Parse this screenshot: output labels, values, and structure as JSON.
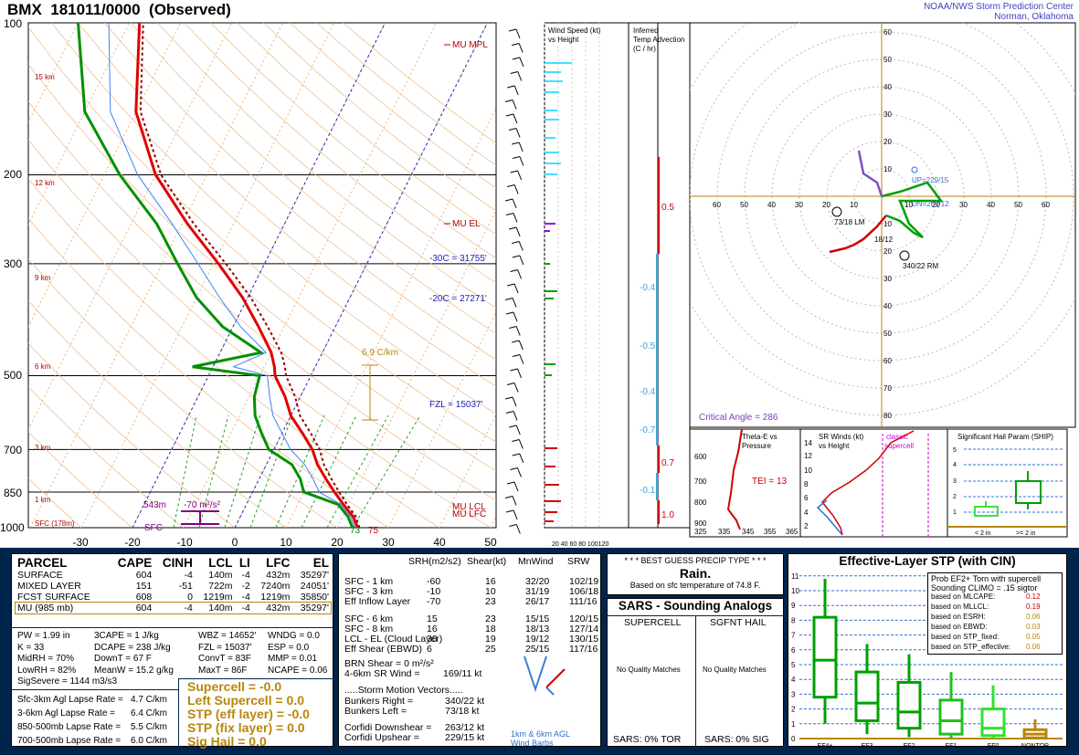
{
  "header": {
    "station": "BMX",
    "datetime": "181011/0000",
    "status": "(Observed)",
    "credit_line1": "NOAA/NWS Storm Prediction Center",
    "credit_line2": "Norman, Oklahoma"
  },
  "skewt": {
    "pressure_labels": [
      "100",
      "200",
      "300",
      "500",
      "700",
      "850",
      "1000"
    ],
    "height_labels": [
      "15 km",
      "12 km",
      "9 km",
      "6 km",
      "3 km",
      "1 km",
      "SFC (178m)"
    ],
    "temp_labels": [
      "-30",
      "-20",
      "-10",
      "0",
      "10",
      "20",
      "30",
      "40",
      "50"
    ],
    "annotations": {
      "mu_mpl": "MU MPL",
      "mu_el": "MU EL",
      "m30c": "-30C = 31755'",
      "m20c": "-20C = 27271'",
      "fzl": "FZL = 15037'",
      "mu_lcl": "MU LCL",
      "mu_lfc": "MU LFC",
      "lapse": "6.9 C/km",
      "sfc_t": "75",
      "sfc_td": "73",
      "m543": "543m",
      "m70": "-70 m²/s²",
      "sfc": "SFC"
    },
    "chart_data": {
      "type": "line",
      "title": "",
      "series": [
        {
          "name": "",
          "p": [
            1000,
            950,
            925,
            900,
            850,
            800,
            750,
            700,
            650,
            600,
            550,
            500,
            480,
            450,
            400,
            350,
            300,
            250,
            200,
            150,
            100
          ],
          "t": [
            24,
            22,
            20.5,
            19,
            16,
            13,
            10,
            7.5,
            4,
            0,
            -3,
            -7,
            -8,
            -10,
            -15,
            -21,
            -29,
            -39,
            -50,
            -60,
            -68
          ]
        },
        {
          "name": "",
          "p": [
            1000,
            950,
            925,
            900,
            850,
            800,
            750,
            700,
            650,
            600,
            550,
            500,
            480,
            450,
            400,
            350,
            300,
            250,
            200,
            150,
            100
          ],
          "td": [
            23,
            21,
            19.5,
            18,
            10,
            8,
            5,
            -1,
            -4,
            -7,
            -9,
            -10,
            -24,
            -12,
            -22,
            -30,
            -37,
            -45,
            -57,
            -70,
            -80
          ]
        }
      ]
    }
  },
  "wind_panel": {
    "title1": "Wind Speed (kt)",
    "title2": "vs Height",
    "ticks": "20 40 60 80 100120"
  },
  "tadv": {
    "title1": "Inferred",
    "title2": "Temp Advection",
    "title3": "(C / hr)",
    "values": [
      "0.5",
      "-0.4",
      "-0.5",
      "-0.4",
      "-0.7",
      "0.7",
      "-0.1",
      "1.0"
    ]
  },
  "hodo": {
    "labels": [
      "10",
      "20",
      "30",
      "40",
      "50",
      "60",
      "10",
      "20",
      "30",
      "40",
      "50",
      "60",
      "70",
      "80"
    ],
    "crit": "Critical Angle = 286",
    "up": "UP=229/15",
    "dn": "DN=263/12",
    "lm": "73/18 LM",
    "rm": "340/22 RM",
    "mean": "18/12"
  },
  "thetae": {
    "title1": "Theta-E vs",
    "title2": "Pressure",
    "tei": "TEI = 13",
    "yticks": [
      "600",
      "700",
      "800",
      "900"
    ],
    "xticks": [
      "325",
      "335",
      "345",
      "355",
      "365"
    ]
  },
  "srwind": {
    "title1": "SR Winds (kt)",
    "title2": "vs Height",
    "legend1": "classic",
    "legend2": "supercell",
    "yticks": [
      "14",
      "12",
      "10",
      "8",
      "6",
      "4",
      "2"
    ]
  },
  "ship": {
    "title": "Significant Hail Param (SHIP)",
    "yticks": [
      "5",
      "4",
      "3",
      "2",
      "1"
    ],
    "x1": "< 2 in",
    "x2": ">= 2 in"
  },
  "parcel": {
    "headers": [
      "PARCEL",
      "CAPE",
      "CINH",
      "LCL",
      "LI",
      "LFC",
      "EL"
    ],
    "rows": [
      [
        "SURFACE",
        "604",
        "-4",
        "140m",
        "-4",
        "432m",
        "35297'"
      ],
      [
        "MIXED LAYER",
        "151",
        "-51",
        "722m",
        "-2",
        "7240m",
        "24051'"
      ],
      [
        "FCST SURFACE",
        "608",
        "0",
        "1219m",
        "-4",
        "1219m",
        "35850'"
      ],
      [
        "MU  (985 mb)",
        "604",
        "-4",
        "140m",
        "-4",
        "432m",
        "35297'"
      ]
    ],
    "misc": [
      [
        "PW = 1.99 in",
        "3CAPE = 1 J/kg",
        "WBZ = 14652'",
        "WNDG = 0.0"
      ],
      [
        "K = 33",
        "DCAPE = 238 J/kg",
        "FZL = 15037'",
        "ESP = 0.0"
      ],
      [
        "MidRH = 70%",
        "DownT = 67 F",
        "ConvT = 83F",
        "MMP = 0.01"
      ],
      [
        "LowRH = 82%",
        "MeanW = 15.2 g/kg",
        "MaxT = 86F",
        "NCAPE = 0.06"
      ]
    ],
    "sigsevere": "SigSevere = 1144 m3/s3",
    "lapse": [
      [
        "Sfc-3km Agl Lapse Rate =",
        "4.7 C/km"
      ],
      [
        "3-6km Agl Lapse Rate =",
        "6.4 C/km"
      ],
      [
        "850-500mb Lapse Rate =",
        "5.5 C/km"
      ],
      [
        "700-500mb Lapse Rate =",
        "6.0 C/km"
      ]
    ],
    "composite": [
      "Supercell = -0.0",
      "Left Supercell = 0.0",
      "STP (eff layer) = -0.0",
      "STP (fix layer) = 0.0",
      "Sig Hail = 0.0"
    ]
  },
  "kinematic": {
    "headers": [
      "SRH(m2/s2)",
      "Shear(kt)",
      "MnWind",
      "SRW"
    ],
    "rows": [
      [
        "SFC - 1 km",
        "-60",
        "16",
        "32/20",
        "102/19"
      ],
      [
        "SFC - 3 km",
        "-10",
        "10",
        "31/19",
        "106/18"
      ],
      [
        "Eff Inflow Layer",
        "-70",
        "23",
        "26/17",
        "111/16"
      ],
      [
        "SFC - 6 km",
        "15",
        "23",
        "15/15",
        "120/15"
      ],
      [
        "SFC - 8 km",
        "16",
        "18",
        "18/13",
        "127/14"
      ],
      [
        "LCL - EL (Cloud Layer)",
        "30",
        "19",
        "19/12",
        "130/15"
      ],
      [
        "Eff Shear (EBWD)",
        "6",
        "25",
        "25/15",
        "117/16"
      ]
    ],
    "brn": [
      "BRN Shear = 0 m²/s²",
      "4-6km SR Wind =",
      "169/11 kt"
    ],
    "smv_title": ".....Storm Motion Vectors.....",
    "smv": [
      [
        "Bunkers Right =",
        "340/22 kt"
      ],
      [
        "Bunkers Left =",
        "73/18 kt"
      ],
      [
        "Corfidi Downshear =",
        "263/12 kt"
      ],
      [
        "Corfidi Upshear =",
        "229/15 kt"
      ]
    ],
    "barbs1": "1km & 6km AGL",
    "barbs2": "Wind Barbs"
  },
  "precip": {
    "title": "* * * BEST GUESS PRECIP TYPE * * *",
    "value": "Rain.",
    "note": "Based on sfc temperature of 74.8 F."
  },
  "sars": {
    "title": "SARS - Sounding Analogs",
    "sc": "SUPERCELL",
    "hail": "SGFNT HAIL",
    "nomatch1": "No Quality Matches",
    "nomatch2": "No Quality Matches",
    "tor": "SARS:  0% TOR",
    "sig": "SARS:  0% SIG"
  },
  "stp": {
    "title": "Effective-Layer STP (with CIN)",
    "prob1": "Prob EF2+ Torn with supercell",
    "prob2": "Sounding CLIMO = .15 sigtor",
    "based": [
      [
        "based on MLCAPE:",
        "0.12"
      ],
      [
        "based on MLLCL:",
        "0.19"
      ],
      [
        "based on ESRH:",
        "0.06"
      ],
      [
        "based on EBWD:",
        "0.03"
      ],
      [
        "based on STP_fixed:",
        "0.05"
      ],
      [
        "based on STP_effective:",
        "0.06"
      ]
    ],
    "yticks": [
      "11",
      "10",
      "9",
      "8",
      "7",
      "6",
      "5",
      "4",
      "3",
      "2",
      "1",
      "0"
    ],
    "chart_data": {
      "type": "box",
      "categories": [
        "EF4+",
        "EF3",
        "EF2",
        "EF1",
        "EF0",
        "NONTOR"
      ],
      "boxes": [
        {
          "min": 1,
          "q1": 2.8,
          "med": 5.3,
          "q3": 8.2,
          "max": 10.8
        },
        {
          "min": 0.3,
          "q1": 1.2,
          "med": 2.4,
          "q3": 4.5,
          "max": 6.4
        },
        {
          "min": 0.1,
          "q1": 0.7,
          "med": 1.8,
          "q3": 3.8,
          "max": 5.7
        },
        {
          "min": 0,
          "q1": 0.3,
          "med": 1.2,
          "q3": 2.6,
          "max": 4.5
        },
        {
          "min": 0,
          "q1": 0.2,
          "med": 0.7,
          "q3": 2.0,
          "max": 3.6
        },
        {
          "min": 0,
          "q1": 0.05,
          "med": 0.3,
          "q3": 0.6,
          "max": 1.3
        }
      ]
    }
  },
  "colors": {
    "temp": "#e00000",
    "dew": "#009000",
    "navy": "#00254d",
    "gold": "#b8860b",
    "cyan": "#40e0ff"
  }
}
